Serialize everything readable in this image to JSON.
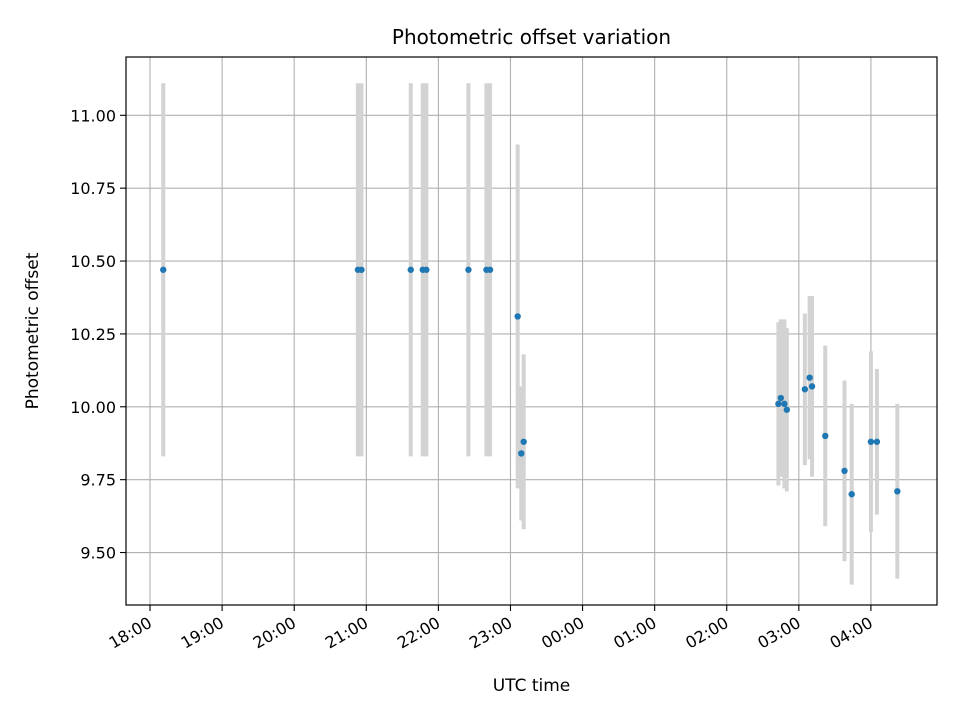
{
  "chart_data": {
    "type": "scatter",
    "title": "Photometric offset variation",
    "xlabel": "UTC time",
    "ylabel": "Photometric offset",
    "x_axis_kind": "time",
    "xlim": [
      "17:40",
      "04:55"
    ],
    "ylim": [
      9.32,
      11.2
    ],
    "xticks": [
      "18:00",
      "19:00",
      "20:00",
      "21:00",
      "22:00",
      "23:00",
      "00:00",
      "01:00",
      "02:00",
      "03:00",
      "04:00"
    ],
    "yticks": [
      9.5,
      9.75,
      10.0,
      10.25,
      10.5,
      10.75,
      11.0
    ],
    "ytick_labels": [
      "9.50",
      "9.75",
      "10.00",
      "10.25",
      "10.50",
      "10.75",
      "11.00"
    ],
    "grid": true,
    "marker_color": "#1f77b4",
    "errorbar_color": "#d3d3d3",
    "points": [
      {
        "t": "18:11",
        "y": 10.47,
        "err": 0.64
      },
      {
        "t": "20:53",
        "y": 10.47,
        "err": 0.64
      },
      {
        "t": "20:56",
        "y": 10.47,
        "err": 0.64
      },
      {
        "t": "21:37",
        "y": 10.47,
        "err": 0.64
      },
      {
        "t": "21:47",
        "y": 10.47,
        "err": 0.64
      },
      {
        "t": "21:50",
        "y": 10.47,
        "err": 0.64
      },
      {
        "t": "22:25",
        "y": 10.47,
        "err": 0.64
      },
      {
        "t": "22:40",
        "y": 10.47,
        "err": 0.64
      },
      {
        "t": "22:43",
        "y": 10.47,
        "err": 0.64
      },
      {
        "t": "23:06",
        "y": 10.31,
        "err": 0.59
      },
      {
        "t": "23:09",
        "y": 9.84,
        "err": 0.23
      },
      {
        "t": "23:11",
        "y": 9.88,
        "err": 0.3
      },
      {
        "t": "02:43",
        "y": 10.01,
        "err": 0.28
      },
      {
        "t": "02:45",
        "y": 10.03,
        "err": 0.27
      },
      {
        "t": "02:48",
        "y": 10.01,
        "err": 0.29
      },
      {
        "t": "02:50",
        "y": 9.99,
        "err": 0.28
      },
      {
        "t": "03:05",
        "y": 10.06,
        "err": 0.26
      },
      {
        "t": "03:09",
        "y": 10.1,
        "err": 0.28
      },
      {
        "t": "03:11",
        "y": 10.07,
        "err": 0.31
      },
      {
        "t": "03:22",
        "y": 9.9,
        "err": 0.31
      },
      {
        "t": "03:38",
        "y": 9.78,
        "err": 0.31
      },
      {
        "t": "03:44",
        "y": 9.7,
        "err": 0.31
      },
      {
        "t": "04:00",
        "y": 9.88,
        "err": 0.31
      },
      {
        "t": "04:05",
        "y": 9.88,
        "err": 0.25
      },
      {
        "t": "04:22",
        "y": 9.71,
        "err": 0.3
      }
    ]
  }
}
